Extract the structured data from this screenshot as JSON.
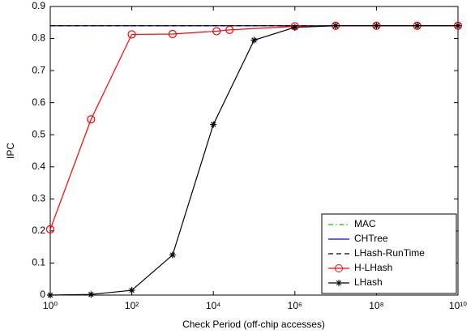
{
  "chart_data": {
    "type": "line",
    "xlabel": "Check Period (off-chip accesses)",
    "ylabel": "IPC",
    "xscale": "log",
    "xlim": [
      1,
      10000000000
    ],
    "xticks": [
      {
        "value": 1,
        "label": "10⁰"
      },
      {
        "value": 100,
        "label": "10²"
      },
      {
        "value": 10000,
        "label": "10⁴"
      },
      {
        "value": 1000000,
        "label": "10⁶"
      },
      {
        "value": 100000000,
        "label": "10⁸"
      },
      {
        "value": 10000000000,
        "label": "10¹⁰"
      }
    ],
    "ylim": [
      0,
      0.9
    ],
    "yticks": [
      0,
      0.1,
      0.2,
      0.3,
      0.4,
      0.5,
      0.6,
      0.7,
      0.8,
      0.9
    ],
    "grid": false,
    "legend": "lower right",
    "series": [
      {
        "name": "MAC",
        "color": "#00cc00",
        "linestyle": "dashdot",
        "marker": "none",
        "x": [
          1,
          10000000000
        ],
        "values": [
          0.84,
          0.84
        ]
      },
      {
        "name": "CHTree",
        "color": "#0000ff",
        "linestyle": "solid",
        "marker": "none",
        "x": [
          1,
          10000000000
        ],
        "values": [
          0.84,
          0.84
        ]
      },
      {
        "name": "LHash-RunTime",
        "color": "#000000",
        "linestyle": "dashed",
        "marker": "none",
        "x": [
          1,
          10000000000
        ],
        "values": [
          0.84,
          0.84
        ]
      },
      {
        "name": "H-LHash",
        "color": "#ff0000",
        "linestyle": "solid",
        "marker": "circle",
        "x": [
          1,
          10,
          100,
          1000,
          12000,
          25000,
          1000000,
          10000000,
          100000000,
          1000000000,
          10000000000
        ],
        "values": [
          0.205,
          0.548,
          0.813,
          0.814,
          0.823,
          0.827,
          0.838,
          0.84,
          0.84,
          0.84,
          0.84
        ]
      },
      {
        "name": "LHash",
        "color": "#000000",
        "linestyle": "solid",
        "marker": "star",
        "x": [
          1,
          10,
          100,
          1000,
          10000,
          100000,
          1000000,
          10000000,
          100000000,
          1000000000,
          10000000000
        ],
        "values": [
          0,
          0.002,
          0.015,
          0.125,
          0.532,
          0.795,
          0.835,
          0.84,
          0.84,
          0.84,
          0.84
        ]
      }
    ]
  }
}
